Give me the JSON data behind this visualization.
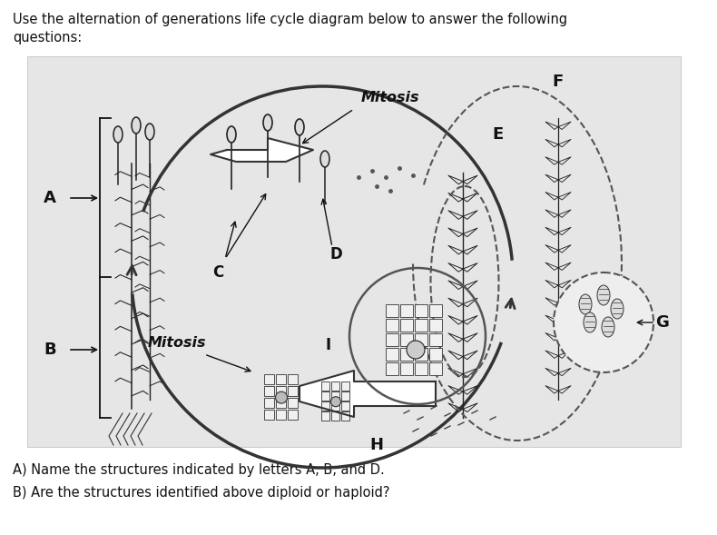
{
  "title_text": "Use the alternation of generations life cycle diagram below to answer the following\nquestions:",
  "question_a": "A) Name the structures indicated by letters A, B, and D.",
  "question_b": "B) Are the structures identified above diploid or haploid?",
  "fig_bg": "#ffffff",
  "diagram_bg": "#e6e6e6",
  "title_fontsize": 10.5,
  "question_fontsize": 10.5,
  "label_fontsize": 12,
  "mitosis_fontsize": 11.5,
  "text_color": "#111111"
}
